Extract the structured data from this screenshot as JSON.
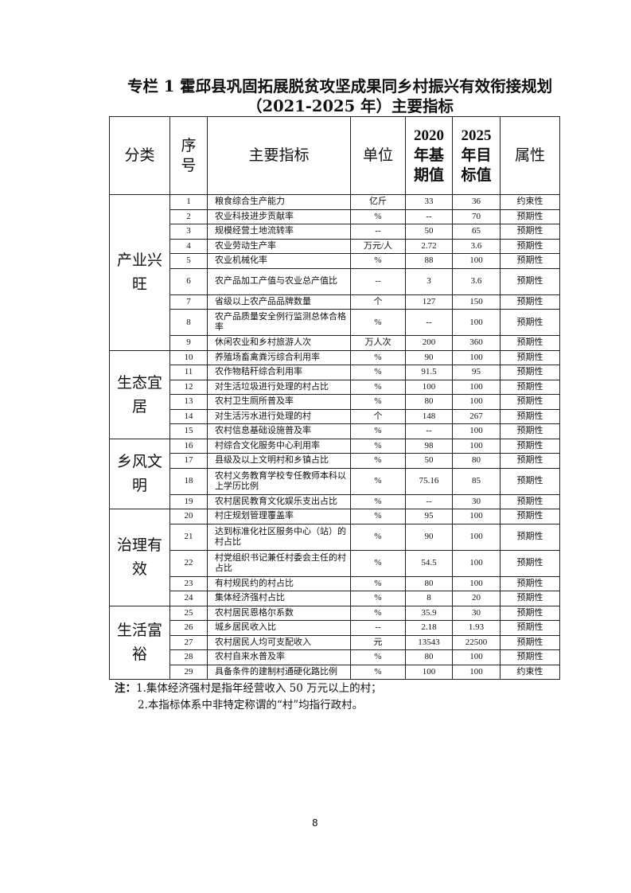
{
  "title": {
    "line1": "专栏 1  霍邱县巩固拓展脱贫攻坚成果同乡村振兴有效衔接规划",
    "line2": "（2021-2025 年）主要指标"
  },
  "headers": {
    "category": "分类",
    "seq": "序号",
    "indicator": "主要指标",
    "unit": "单位",
    "base": "2020年基期值",
    "target": "2025年目标值",
    "attr": "属性"
  },
  "categories": [
    "产业兴旺",
    "生态宜居",
    "乡风文明",
    "治理有效",
    "生活富裕"
  ],
  "rows": [
    [
      "1",
      "粮食综合生产能力",
      "亿斤",
      "33",
      "36",
      "约束性"
    ],
    [
      "2",
      "农业科技进步贡献率",
      "%",
      "--",
      "70",
      "预期性"
    ],
    [
      "3",
      "规模经营土地流转率",
      "--",
      "50",
      "65",
      "预期性"
    ],
    [
      "4",
      "农业劳动生产率",
      "万元/人",
      "2.72",
      "3.6",
      "预期性"
    ],
    [
      "5",
      "农业机械化率",
      "%",
      "88",
      "100",
      "预期性"
    ],
    [
      "6",
      "农产品加工产值与农业总产值比",
      "--",
      "3",
      "3.6",
      "预期性"
    ],
    [
      "7",
      "省级以上农产品品牌数量",
      "个",
      "127",
      "150",
      "预期性"
    ],
    [
      "8",
      "农产品质量安全例行监测总体合格率",
      "%",
      "--",
      "100",
      "预期性"
    ],
    [
      "9",
      "休闲农业和乡村旅游人次",
      "万人次",
      "200",
      "360",
      "预期性"
    ],
    [
      "10",
      "养殖场畜禽粪污综合利用率",
      "%",
      "90",
      "100",
      "预期性"
    ],
    [
      "11",
      "农作物秸秆综合利用率",
      "%",
      "91.5",
      "95",
      "预期性"
    ],
    [
      "12",
      "对生活垃圾进行处理的村占比",
      "%",
      "100",
      "100",
      "预期性"
    ],
    [
      "13",
      "农村卫生厕所普及率",
      "%",
      "80",
      "100",
      "预期性"
    ],
    [
      "14",
      "对生活污水进行处理的村",
      "个",
      "148",
      "267",
      "预期性"
    ],
    [
      "15",
      "农村信息基础设施普及率",
      "%",
      "--",
      "100",
      "预期性"
    ],
    [
      "16",
      "村综合文化服务中心利用率",
      "%",
      "98",
      "100",
      "预期性"
    ],
    [
      "17",
      "县级及以上文明村和乡镇占比",
      "%",
      "50",
      "80",
      "预期性"
    ],
    [
      "18",
      "农村义务教育学校专任教师本科以上学历比例",
      "%",
      "75.16",
      "85",
      "预期性"
    ],
    [
      "19",
      "农村居民教育文化娱乐支出占比",
      "%",
      "--",
      "30",
      "预期性"
    ],
    [
      "20",
      "村庄规划管理覆盖率",
      "%",
      "95",
      "100",
      "预期性"
    ],
    [
      "21",
      "达到标准化社区服务中心（站）的村占比",
      "%",
      "90",
      "100",
      "预期性"
    ],
    [
      "22",
      "村党组织书记兼任村委会主任的村占比",
      "%",
      "54.5",
      "100",
      "预期性"
    ],
    [
      "23",
      "有村规民约的村占比",
      "%",
      "80",
      "100",
      "预期性"
    ],
    [
      "24",
      "集体经济强村占比",
      "%",
      "8",
      "20",
      "预期性"
    ],
    [
      "25",
      "农村居民恩格尔系数",
      "%",
      "35.9",
      "30",
      "预期性"
    ],
    [
      "26",
      "城乡居民收入比",
      "--",
      "2.18",
      "1.93",
      "预期性"
    ],
    [
      "27",
      "农村居民人均可支配收入",
      "元",
      "13543",
      "22500",
      "预期性"
    ],
    [
      "28",
      "农村自来水普及率",
      "%",
      "80",
      "100",
      "预期性"
    ],
    [
      "29",
      "具备条件的建制村通硬化路比例",
      "%",
      "100",
      "100",
      "约束性"
    ]
  ],
  "notes": {
    "label": "注：",
    "n1": "1.集体经济强村是指年经营收入 50 万元以上的村；",
    "n2": "2.本指标体系中非特定称谓的“村”均指行政村。"
  },
  "page_number": "8"
}
